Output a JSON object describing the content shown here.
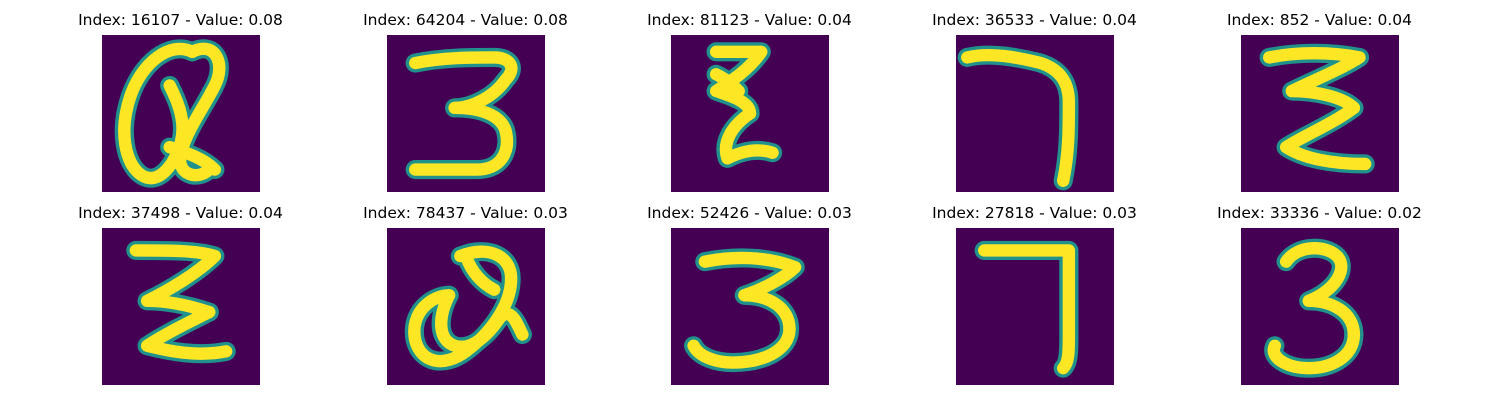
{
  "chart_data": {
    "type": "image-grid",
    "title": "",
    "rows": 2,
    "columns": 5,
    "colormap": "viridis",
    "colors": {
      "background": "#440154",
      "low": "#440154",
      "mid": "#21918c",
      "high": "#fde725"
    },
    "panels": [
      {
        "title": "Index: 16107 - Value: 0.08",
        "index": 16107,
        "value": 0.08,
        "glyph": "Q"
      },
      {
        "title": "Index: 64204 - Value: 0.08",
        "index": 64204,
        "value": 0.08,
        "glyph": "3"
      },
      {
        "title": "Index: 81123 - Value: 0.04",
        "index": 81123,
        "value": 0.04,
        "glyph": "Z"
      },
      {
        "title": "Index: 36533 - Value: 0.04",
        "index": 36533,
        "value": 0.04,
        "glyph": "7"
      },
      {
        "title": "Index: 852 - Value: 0.04",
        "index": 852,
        "value": 0.04,
        "glyph": "Z"
      },
      {
        "title": "Index: 37498 - Value: 0.04",
        "index": 37498,
        "value": 0.04,
        "glyph": "Z"
      },
      {
        "title": "Index: 78437 - Value: 0.03",
        "index": 78437,
        "value": 0.03,
        "glyph": "Q"
      },
      {
        "title": "Index: 52426 - Value: 0.03",
        "index": 52426,
        "value": 0.03,
        "glyph": "3"
      },
      {
        "title": "Index: 27818 - Value: 0.03",
        "index": 27818,
        "value": 0.03,
        "glyph": "7"
      },
      {
        "title": "Index: 33336 - Value: 0.02",
        "index": 33336,
        "value": 0.02,
        "glyph": "3"
      }
    ]
  }
}
